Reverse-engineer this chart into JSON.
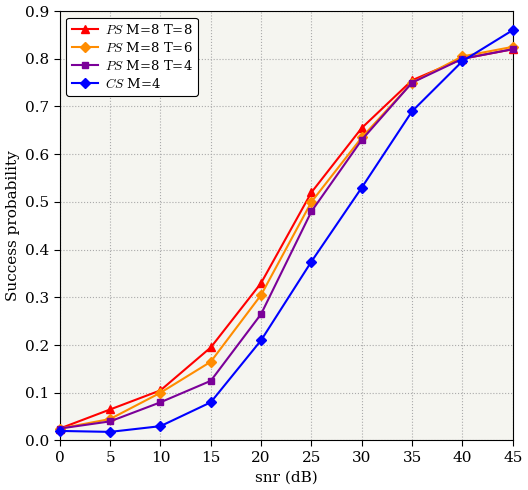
{
  "snr": [
    0,
    5,
    10,
    15,
    20,
    25,
    30,
    35,
    40,
    45
  ],
  "ps_T8": [
    0.025,
    0.065,
    0.105,
    0.195,
    0.33,
    0.52,
    0.655,
    0.755,
    0.8,
    0.82
  ],
  "ps_T6": [
    0.025,
    0.045,
    0.1,
    0.165,
    0.305,
    0.5,
    0.635,
    0.75,
    0.805,
    0.825
  ],
  "ps_T4": [
    0.025,
    0.04,
    0.08,
    0.125,
    0.265,
    0.48,
    0.63,
    0.75,
    0.8,
    0.82
  ],
  "cs_M4": [
    0.02,
    0.018,
    0.03,
    0.08,
    0.21,
    0.375,
    0.53,
    0.69,
    0.795,
    0.86
  ],
  "colors": {
    "ps_T8": "#FF0000",
    "ps_T6": "#FF8C00",
    "ps_T4": "#7B0099",
    "cs_M4": "#0000FF"
  },
  "markers": {
    "ps_T8": "^",
    "ps_T6": "D",
    "ps_T4": "s",
    "cs_M4": "D"
  },
  "marker_sizes": {
    "ps_T8": 6,
    "ps_T6": 5,
    "ps_T4": 5,
    "cs_M4": 5
  },
  "linewidths": {
    "ps_T8": 1.5,
    "ps_T6": 1.5,
    "ps_T4": 1.5,
    "cs_M4": 1.5
  },
  "labels": {
    "ps_T8": "$\\mathit{PS}$ M=8 T=8",
    "ps_T6": "$\\mathit{PS}$ M=8 T=6",
    "ps_T4": "$\\mathit{PS}$ M=8 T=4",
    "cs_M4": "$\\mathit{CS}$ M=4"
  },
  "xlabel": "snr (dB)",
  "ylabel": "Success probability",
  "ylim": [
    0,
    0.9
  ],
  "xlim": [
    0,
    45
  ],
  "yticks": [
    0.0,
    0.1,
    0.2,
    0.3,
    0.4,
    0.5,
    0.6,
    0.7,
    0.8,
    0.9
  ],
  "xticks": [
    0,
    5,
    10,
    15,
    20,
    25,
    30,
    35,
    40,
    45
  ],
  "bg_color": "#f5f5f0",
  "grid_color": "#aaaaaa",
  "font_size": 11
}
